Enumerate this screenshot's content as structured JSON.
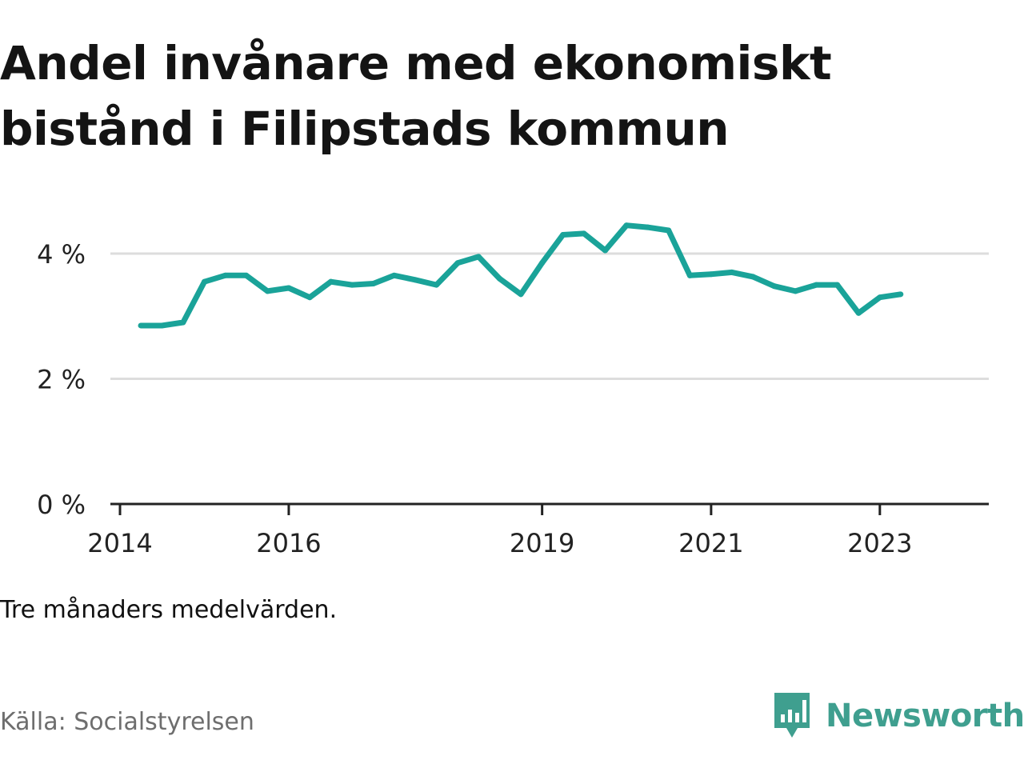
{
  "title": "Andel invånare med ekonomiskt bistånd i Filipstads kommun",
  "note": "Tre månaders medelvärden.",
  "source": "Källa: Socialstyrelsen",
  "brand": {
    "name": "Newsworthy",
    "icon": "bar-chart-speech-bubble-icon",
    "color": "#3f9f8f"
  },
  "colors": {
    "line": "#1aa399",
    "grid": "#dddddd",
    "axis": "#222222"
  },
  "chart_data": {
    "type": "line",
    "title": "Andel invånare med ekonomiskt bistånd i Filipstads kommun",
    "xlabel": "",
    "ylabel": "",
    "y_unit": "%",
    "ylim": [
      0,
      4.6
    ],
    "y_ticks": [
      0,
      2,
      4
    ],
    "y_tick_labels": [
      "0 %",
      "2 %",
      "4 %"
    ],
    "x_range": [
      "2014-01-01",
      "2023-12-31"
    ],
    "x_ticks": [
      "2014-01-01",
      "2016-01-01",
      "2019-01-01",
      "2021-01-01",
      "2023-01-01"
    ],
    "x_tick_labels": [
      "2014",
      "2016",
      "2019",
      "2021",
      "2023"
    ],
    "grid": true,
    "legend": "none",
    "series": [
      {
        "x": [
          "2014-04-01",
          "2014-07-01",
          "2014-10-01",
          "2015-01-01",
          "2015-04-01",
          "2015-07-01",
          "2015-10-01",
          "2016-01-01",
          "2016-04-01",
          "2016-07-01",
          "2016-10-01",
          "2017-01-01",
          "2017-04-01",
          "2017-07-01",
          "2017-10-01",
          "2018-01-01",
          "2018-04-01",
          "2018-07-01",
          "2018-10-01",
          "2019-01-01",
          "2019-04-01",
          "2019-07-01",
          "2019-10-01",
          "2020-01-01",
          "2020-04-01",
          "2020-07-01",
          "2020-10-01",
          "2021-01-01",
          "2021-04-01",
          "2021-07-01",
          "2021-10-01",
          "2022-01-01",
          "2022-04-01",
          "2022-07-01",
          "2022-10-01",
          "2023-01-01",
          "2023-04-01"
        ],
        "values": [
          2.85,
          2.85,
          2.9,
          3.55,
          3.65,
          3.65,
          3.4,
          3.45,
          3.3,
          3.55,
          3.5,
          3.52,
          3.65,
          3.58,
          3.5,
          3.85,
          3.95,
          3.6,
          3.35,
          3.85,
          4.3,
          4.32,
          4.05,
          4.45,
          4.42,
          4.37,
          3.65,
          3.67,
          3.7,
          3.63,
          3.48,
          3.4,
          3.5,
          3.5,
          3.05,
          3.3,
          3.35
        ]
      }
    ]
  }
}
